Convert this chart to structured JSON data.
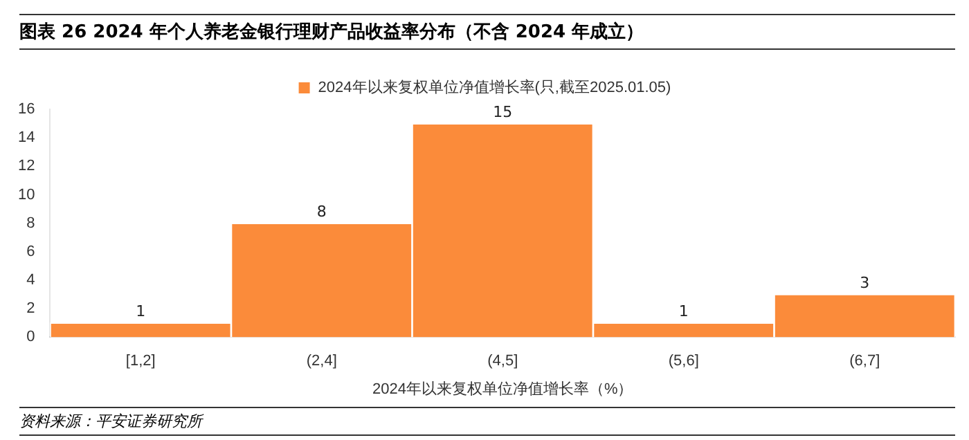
{
  "chart_data": {
    "type": "bar",
    "title": "图表 26   2024 年个人养老金银行理财产品收益率分布（不含 2024 年成立）",
    "xlabel": "2024年以来复权单位净值增长率（%）",
    "categories": [
      "[1,2]",
      "(2,4]",
      "(4,5]",
      "(5,6]",
      "(6,7]"
    ],
    "series": [
      {
        "name": "2024年以来复权单位净值增长率(只,截至2025.01.05)",
        "color": "#fb8b3a",
        "values": [
          1,
          8,
          15,
          1,
          3
        ]
      }
    ],
    "ylim": [
      0,
      16
    ],
    "yticks": [
      0,
      2,
      4,
      6,
      8,
      10,
      12,
      14,
      16
    ],
    "grid": false,
    "legend": "top",
    "data_labels": true,
    "annotations": [
      "资料来源：平安证券研究所"
    ]
  }
}
